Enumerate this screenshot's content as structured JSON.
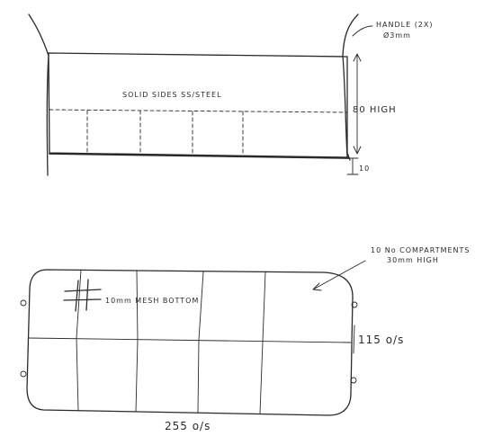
{
  "side_view": {
    "handle_note_line1": "HANDLE (2X)",
    "handle_note_line2": "Ø3mm",
    "sides_label": "SOLID SIDES SS/STEEL",
    "height_label": "80 HIGH",
    "base_label": "10"
  },
  "plan_view": {
    "compartments_note_line1": "10 No COMPARTMENTS",
    "compartments_note_line2": "30mm HIGH",
    "mesh_label": "10mm MESH BOTTOM",
    "width_label": "115 o/s",
    "length_label": "255 o/s"
  }
}
